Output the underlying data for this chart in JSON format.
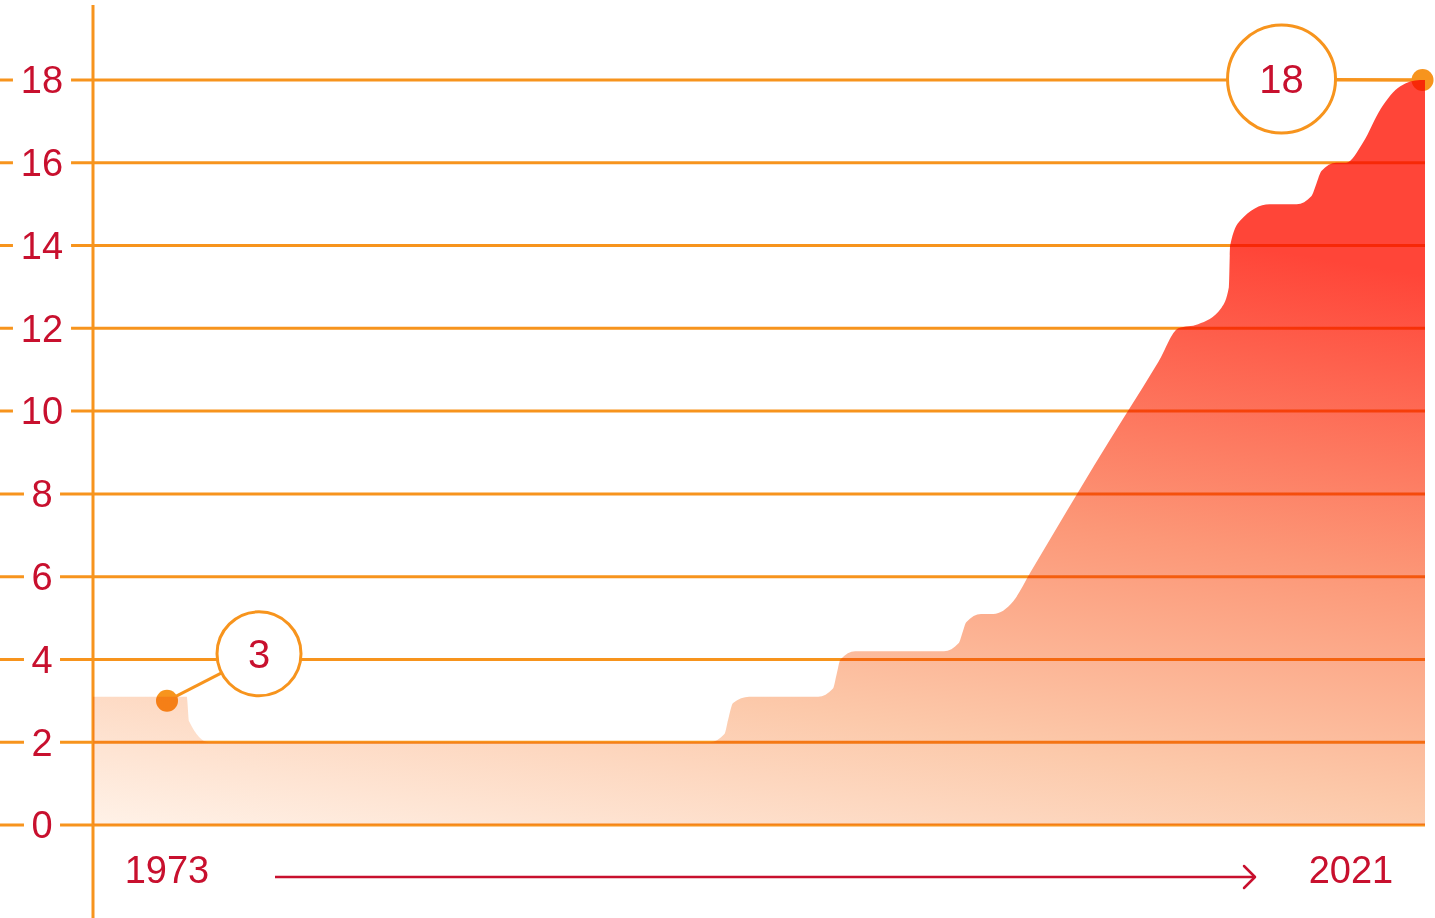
{
  "chart_data": {
    "type": "area",
    "x": [
      1970,
      1973.8,
      1973.9,
      1974.7,
      1995,
      1995.6,
      1995.75,
      1995.95,
      1996.6,
      1999.4,
      2000,
      2000.15,
      2000.3,
      2000.9,
      2004.5,
      2005.1,
      2005.25,
      2005.4,
      2006,
      2006.5,
      2007.3,
      2008,
      2010.6,
      2013.2,
      2014,
      2014.8,
      2015.75,
      2016.05,
      2016.1,
      2016.5,
      2017.7,
      2018.8,
      2019.4,
      2019.6,
      2019.8,
      2020.4,
      2020.8,
      2021.5,
      2022.2,
      2023,
      2023.8,
      2024
    ],
    "values": [
      3.1,
      3.1,
      2.5,
      2,
      2,
      2.2,
      2.55,
      2.95,
      3.1,
      3.1,
      3.3,
      3.65,
      4,
      4.2,
      4.2,
      4.4,
      4.65,
      4.9,
      5.1,
      5.1,
      5.4,
      6.1,
      8.7,
      11.2,
      12,
      12.1,
      12.5,
      13,
      14,
      14.6,
      15,
      15,
      15.2,
      15.5,
      15.8,
      16,
      16,
      16.5,
      17.3,
      17.85,
      18,
      18
    ],
    "color": "#ff4538",
    "xlim": [
      1970,
      2024
    ],
    "xticks": [
      1973,
      2021
    ],
    "ylim": [
      0,
      18
    ],
    "yticks": [
      0,
      2,
      4,
      6,
      8,
      10,
      12,
      14,
      16,
      18
    ],
    "grid": "y",
    "annotations": [
      {
        "text": "3",
        "x": 1973,
        "y": 3
      },
      {
        "text": "18",
        "x": 2023.9,
        "y": 18
      }
    ]
  }
}
